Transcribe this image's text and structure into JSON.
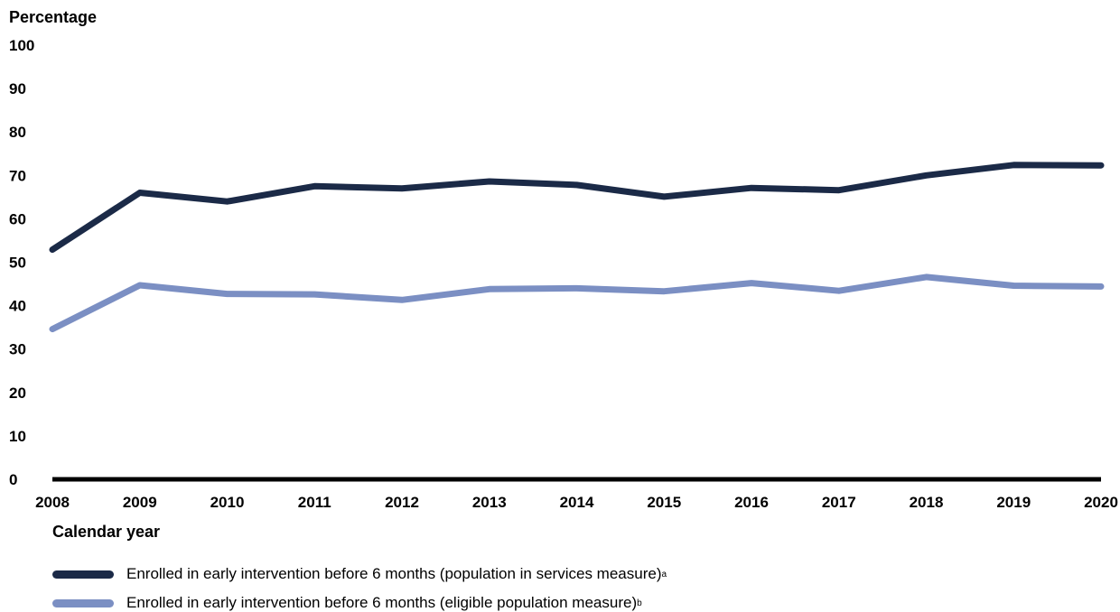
{
  "chart_data": {
    "type": "line",
    "ylabel": "Percentage",
    "xlabel": "Calendar year",
    "ylim": [
      0,
      100
    ],
    "yticks": [
      "0",
      "10",
      "20",
      "30",
      "40",
      "50",
      "60",
      "70",
      "80",
      "90",
      "100"
    ],
    "x": [
      "2008",
      "2009",
      "2010",
      "2011",
      "2012",
      "2013",
      "2014",
      "2015",
      "2016",
      "2017",
      "2018",
      "2019",
      "2020"
    ],
    "series": [
      {
        "name": "Enrolled in early intervention before 6 months (population in services measure)",
        "superscript": "a",
        "color": "#1b2a47",
        "values": [
          52.9,
          66.0,
          64.0,
          67.5,
          67.0,
          68.6,
          67.8,
          65.1,
          67.1,
          66.6,
          70.0,
          72.4,
          72.3
        ]
      },
      {
        "name": "Enrolled in early intervention before 6 months (eligible population measure)",
        "superscript": "b",
        "color": "#7b8fc3",
        "values": [
          34.6,
          44.7,
          42.7,
          42.6,
          41.3,
          43.8,
          44.0,
          43.3,
          45.2,
          43.4,
          46.6,
          44.6,
          44.4
        ]
      }
    ],
    "grid": false,
    "legend_position": "bottom-left"
  }
}
